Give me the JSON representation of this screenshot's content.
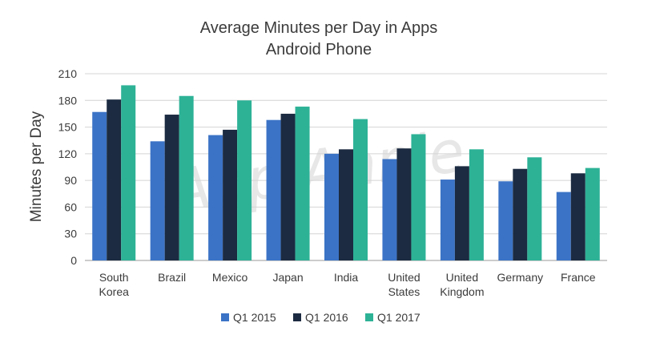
{
  "chart_data": {
    "type": "bar",
    "title": "Average Minutes per Day in Apps",
    "subtitle": "Android Phone",
    "xlabel": "",
    "ylabel": "Minutes per Day",
    "ylim": [
      0,
      210
    ],
    "yticks": [
      0,
      30,
      60,
      90,
      120,
      150,
      180,
      210
    ],
    "grid": true,
    "legend_position": "bottom",
    "watermark": "App Annie",
    "categories": [
      [
        "South",
        "Korea"
      ],
      [
        "Brazil"
      ],
      [
        "Mexico"
      ],
      [
        "Japan"
      ],
      [
        "India"
      ],
      [
        "United",
        "States"
      ],
      [
        "United",
        "Kingdom"
      ],
      [
        "Germany"
      ],
      [
        "France"
      ]
    ],
    "series": [
      {
        "name": "Q1 2015",
        "color": "#3b73c6",
        "values": [
          167,
          134,
          141,
          158,
          120,
          114,
          91,
          89,
          77
        ]
      },
      {
        "name": "Q1 2016",
        "color": "#1c2b41",
        "values": [
          181,
          164,
          147,
          165,
          125,
          126,
          106,
          103,
          98
        ]
      },
      {
        "name": "Q1 2017",
        "color": "#2db296",
        "values": [
          197,
          185,
          180,
          173,
          159,
          142,
          125,
          116,
          104
        ]
      }
    ]
  }
}
